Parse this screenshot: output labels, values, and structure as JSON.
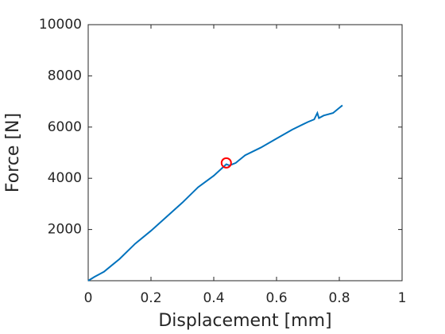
{
  "chart_data": {
    "type": "line",
    "xlabel": "Displacement [mm]",
    "ylabel": "Force [N]",
    "series": [
      {
        "color": "#0072bd",
        "marker": "none",
        "x": [
          0,
          0.02,
          0.05,
          0.08,
          0.1,
          0.15,
          0.2,
          0.25,
          0.3,
          0.35,
          0.4,
          0.44,
          0.45,
          0.47,
          0.48,
          0.5,
          0.55,
          0.6,
          0.65,
          0.7,
          0.72,
          0.73,
          0.735,
          0.75,
          0.78,
          0.8,
          0.81
        ],
        "values": [
          0,
          150,
          350,
          650,
          850,
          1450,
          1950,
          2500,
          3050,
          3650,
          4100,
          4550,
          4500,
          4600,
          4700,
          4900,
          5200,
          5550,
          5900,
          6200,
          6300,
          6550,
          6350,
          6450,
          6550,
          6750,
          6850
        ]
      },
      {
        "color": "#ff0000",
        "marker": "circle",
        "x": [
          0.44
        ],
        "values": [
          4600
        ]
      }
    ],
    "xlim": [
      0,
      1
    ],
    "xticks": [
      0,
      0.2,
      0.4,
      0.6,
      0.8,
      1
    ],
    "ylim": [
      0,
      10000
    ],
    "yticks": [
      2000,
      4000,
      6000,
      8000,
      10000
    ]
  }
}
